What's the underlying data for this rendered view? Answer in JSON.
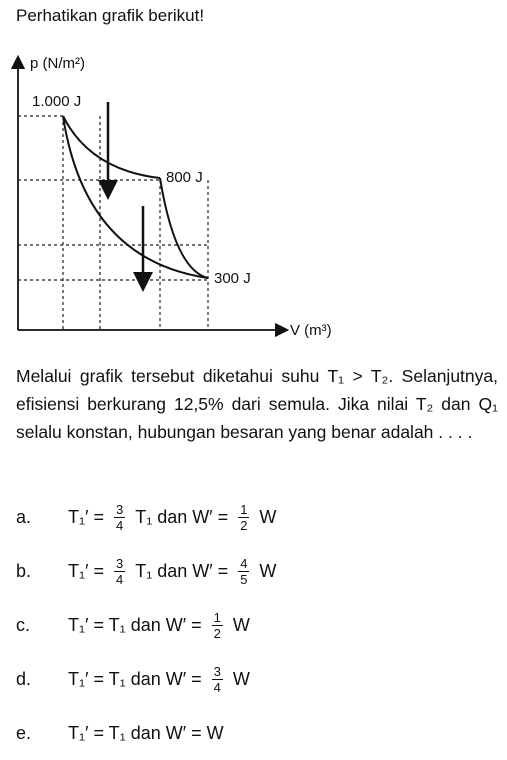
{
  "header": {
    "title": "Perhatikan grafik berikut!"
  },
  "diagram": {
    "y_axis_label": "p (N/m²)",
    "x_axis_label": "V (m³)",
    "points": [
      {
        "label": "1.000 J"
      },
      {
        "label": "800 J"
      },
      {
        "label": "300 J"
      }
    ]
  },
  "question": "Melalui grafik tersebut diketahui suhu T₁ > T₂. Selanjutnya, efisiensi berkurang 12,5% dari semula. Jika nilai T₂ dan Q₁ selalu konstan, hubungan besaran yang benar adalah . . . .",
  "options": [
    {
      "label": "a.",
      "parts": [
        "T₁′ =",
        {
          "num": "3",
          "den": "4"
        },
        "T₁ dan W′ =",
        {
          "num": "1",
          "den": "2"
        },
        "W"
      ]
    },
    {
      "label": "b.",
      "parts": [
        "T₁′ =",
        {
          "num": "3",
          "den": "4"
        },
        "T₁ dan W′ =",
        {
          "num": "4",
          "den": "5"
        },
        "W"
      ]
    },
    {
      "label": "c.",
      "parts": [
        "T₁′ = T₁ dan W′ =",
        {
          "num": "1",
          "den": "2"
        },
        "W"
      ]
    },
    {
      "label": "d.",
      "parts": [
        "T₁′ = T₁ dan W′ =",
        {
          "num": "3",
          "den": "4"
        },
        "W"
      ]
    },
    {
      "label": "e.",
      "parts": [
        "T₁′ = T₁ dan W′ = W"
      ]
    }
  ]
}
